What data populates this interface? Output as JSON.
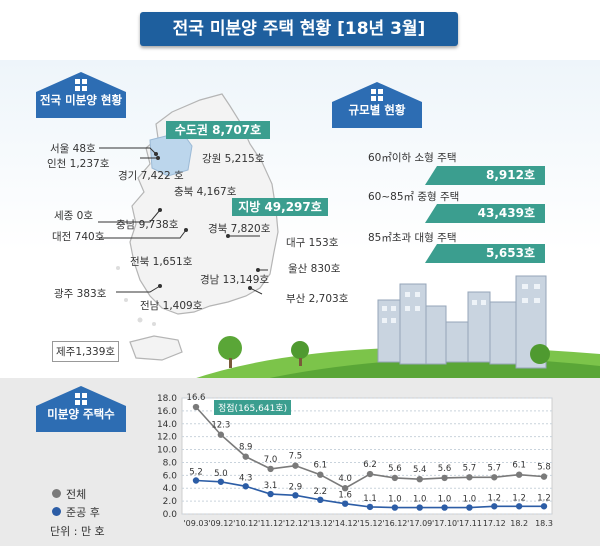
{
  "title": "전국 미분양 주택 현황 [18년 3월]",
  "map_section": {
    "header": "전국 미분양 현황",
    "capital_tag": "수도권 8,707호",
    "local_tag": "지방 49,297호",
    "jeju": "제주1,339호",
    "regions": [
      {
        "id": "seoul",
        "label": "서울    48호"
      },
      {
        "id": "incheon",
        "label": "인천 1,237호"
      },
      {
        "id": "gyeonggi",
        "label": "경기 7,422 호"
      },
      {
        "id": "gangwon",
        "label": "강원 5,215호"
      },
      {
        "id": "chungbuk",
        "label": "충북 4,167호"
      },
      {
        "id": "sejong",
        "label": "세종 0호"
      },
      {
        "id": "chungnam",
        "label": "충남 9,738호"
      },
      {
        "id": "daejeon",
        "label": "대전 740호"
      },
      {
        "id": "gyeongbuk",
        "label": "경북 7,820호"
      },
      {
        "id": "daegu",
        "label": "대구 153호"
      },
      {
        "id": "jeonbuk",
        "label": "전북 1,651호"
      },
      {
        "id": "ulsan",
        "label": "울산 830호"
      },
      {
        "id": "gyeongnam",
        "label": "경남 13,149호"
      },
      {
        "id": "gwangju",
        "label": "광주 383호"
      },
      {
        "id": "busan",
        "label": "부산 2,703호"
      },
      {
        "id": "jeonnam",
        "label": "전남 1,409호"
      }
    ]
  },
  "size_section": {
    "header": "규모별 현황",
    "rows": [
      {
        "label": "60㎡이하 소형 주택",
        "value": "8,912호"
      },
      {
        "label": "60~85㎡ 중형 주택",
        "value": "43,439호"
      },
      {
        "label": "85㎡초과 대형 주택",
        "value": "5,653호"
      }
    ]
  },
  "chart_section": {
    "header": "미분양 주택수",
    "legend_total": "전체",
    "legend_completed": "준공 후",
    "unit": "단위 : 만 호",
    "peak_annotation": "정점(165,641호)",
    "colors": {
      "total": "#7a7a7a",
      "completed": "#2c5da6",
      "tag": "#3b9e8f"
    }
  },
  "chart_data": {
    "type": "line",
    "categories": [
      "'09.03",
      "'09.12",
      "'10.12",
      "'11.12",
      "'12.12",
      "'13.12",
      "'14.12",
      "'15.12",
      "'16.12",
      "'17.09",
      "'17.10",
      "'17.11",
      "17.12",
      "18.2",
      "18.3"
    ],
    "ylim": [
      0,
      18
    ],
    "yticks": [
      "0.0",
      "2.0",
      "4.0",
      "6.0",
      "8.0",
      "10.0",
      "12.0",
      "14.0",
      "16.0",
      "18.0"
    ],
    "grid": true,
    "series": [
      {
        "name": "전체",
        "values": [
          16.6,
          12.3,
          8.9,
          7.0,
          7.5,
          6.1,
          4.0,
          6.2,
          5.6,
          5.4,
          5.6,
          5.7,
          5.7,
          6.1,
          5.8
        ],
        "labels": [
          "16.6",
          "12.3",
          "8.9",
          "7.0",
          "7.5",
          "6.1",
          "4.0",
          "6.2",
          "5.6",
          "5.4",
          "5.6",
          "5.7",
          "5.7",
          "6.1",
          "5.8"
        ]
      },
      {
        "name": "준공 후",
        "values": [
          5.2,
          5.0,
          4.3,
          3.1,
          2.9,
          2.2,
          1.6,
          1.1,
          1.0,
          1.0,
          1.0,
          1.0,
          1.2,
          1.2,
          1.2
        ],
        "labels": [
          "5.2",
          "5.0",
          "4.3",
          "3.1",
          "2.9",
          "2.2",
          "1.6",
          "1.1",
          "1.0",
          "1.0",
          "1.0",
          "1.0",
          "1.2",
          "1.2",
          "1.2"
        ]
      }
    ]
  }
}
